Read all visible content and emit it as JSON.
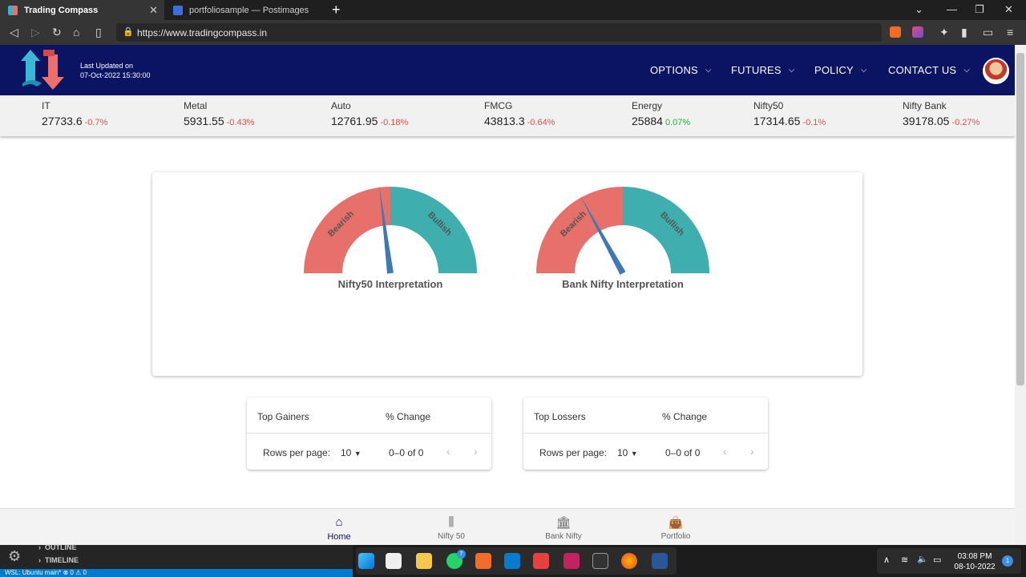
{
  "browser": {
    "tabs": [
      {
        "label": "Trading Compass",
        "active": true
      },
      {
        "label": "portfoliosample — Postimages",
        "active": false
      }
    ],
    "url": "https://www.tradingcompass.in"
  },
  "header": {
    "updated_label": "Last Updated on",
    "updated_value": "07-Oct-2022 15:30:00",
    "menu": [
      {
        "label": "OPTIONS"
      },
      {
        "label": "FUTURES"
      },
      {
        "label": "POLICY"
      },
      {
        "label": "CONTACT US"
      }
    ]
  },
  "ticker": [
    {
      "name": "IT",
      "value": "27733.6",
      "change": "-0.7%",
      "dir": "neg"
    },
    {
      "name": "Metal",
      "value": "5931.55",
      "change": "-0.43%",
      "dir": "neg"
    },
    {
      "name": "Auto",
      "value": "12761.95",
      "change": "-0.18%",
      "dir": "neg"
    },
    {
      "name": "FMCG",
      "value": "43813.3",
      "change": "-0.64%",
      "dir": "neg"
    },
    {
      "name": "Energy",
      "value": "25884",
      "change": "0.07%",
      "dir": "pos"
    },
    {
      "name": "Nifty50",
      "value": "17314.65",
      "change": "-0.1%",
      "dir": "neg"
    },
    {
      "name": "Nifty Bank",
      "value": "39178.05",
      "change": "-0.27%",
      "dir": "neg"
    }
  ],
  "gauges": [
    {
      "title": "Nifty50 Interpretation",
      "bearish": "Bearish",
      "bullish": "Bullish",
      "needle_value": 0.46,
      "bearish_color": "#e8706a",
      "bullish_color": "#3eaeae"
    },
    {
      "title": "Bank Nifty Interpretation",
      "bearish": "Bearish",
      "bullish": "Bullish",
      "needle_value": 0.34,
      "bearish_color": "#e8706a",
      "bullish_color": "#3eaeae"
    }
  ],
  "tables": [
    {
      "col1": "Top Gainers",
      "col2": "% Change",
      "rows_label": "Rows per page:",
      "rows_value": "10",
      "range": "0–0 of 0"
    },
    {
      "col1": "Top Lossers",
      "col2": "% Change",
      "rows_label": "Rows per page:",
      "rows_value": "10",
      "range": "0–0 of 0"
    }
  ],
  "bottom_nav": [
    {
      "label": "Home",
      "icon": "home-icon",
      "active": true
    },
    {
      "label": "Nifty 50",
      "icon": "candlestick-icon",
      "active": false
    },
    {
      "label": "Bank Nifty",
      "icon": "bank-icon",
      "active": false
    },
    {
      "label": "Portfolio",
      "icon": "briefcase-icon",
      "active": false
    }
  ],
  "vscode": {
    "outline": "OUTLINE",
    "timeline": "TIMELINE",
    "status": "WSL: Ubuntu   main*   ⊗ 0 ⚠ 0"
  },
  "taskbar": {
    "time": "03:08 PM",
    "date": "08-10-2022",
    "notifications": "1",
    "whatsapp_badge": "7"
  }
}
